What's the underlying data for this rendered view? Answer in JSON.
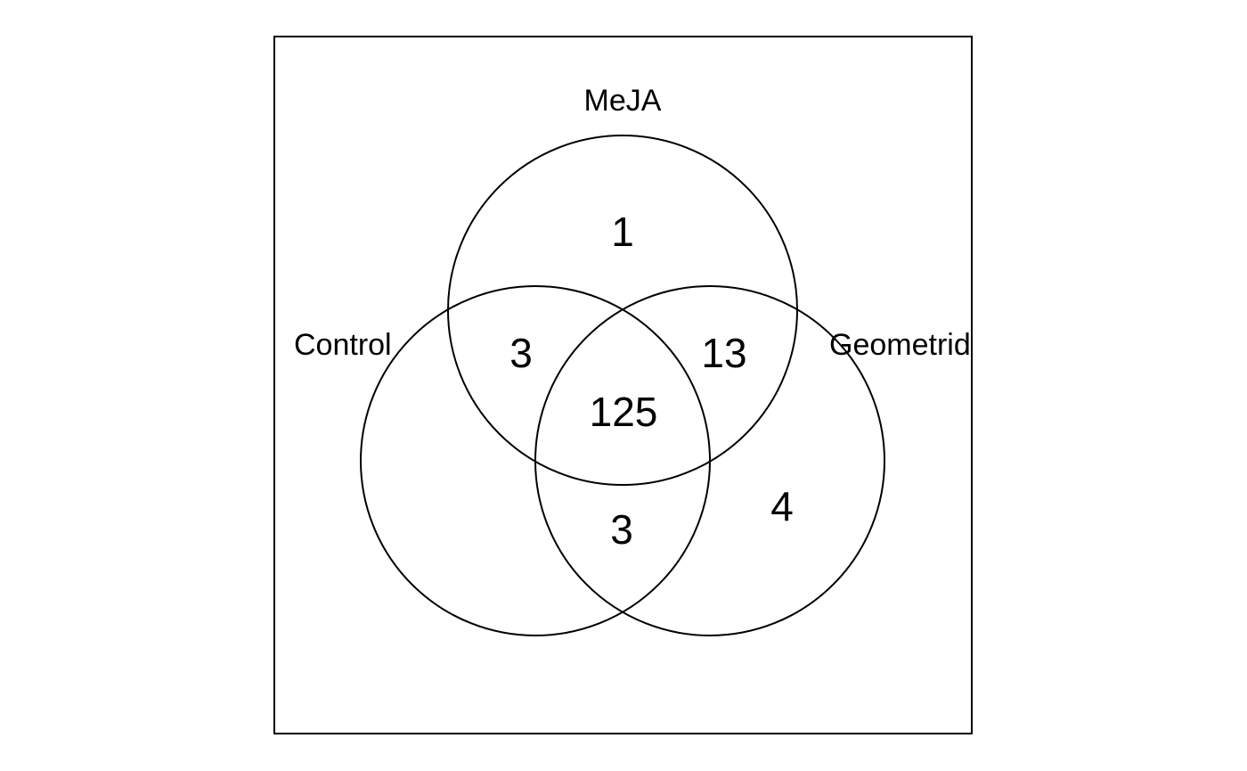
{
  "diagram": {
    "type": "venn-3",
    "sets": [
      {
        "id": "meja",
        "label": "MeJA"
      },
      {
        "id": "control",
        "label": "Control"
      },
      {
        "id": "geometrid",
        "label": "Geometrid"
      }
    ],
    "regions": {
      "meja_only": "1",
      "control_meja": "3",
      "meja_geometrid": "13",
      "all_three": "125",
      "control_geometrid": "3",
      "geometrid_only": "4"
    },
    "colors": {
      "stroke": "#000000",
      "background": "#ffffff"
    }
  }
}
